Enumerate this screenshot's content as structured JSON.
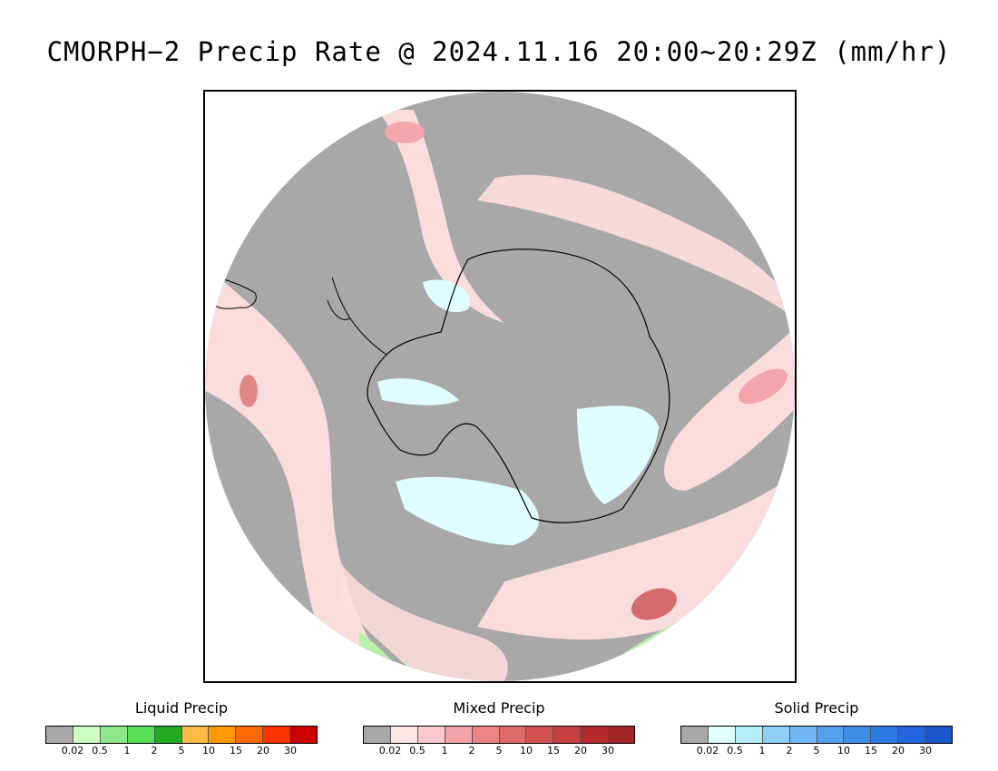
{
  "title": "CMORPH−2 Precip Rate @ 2024.11.16 20:00~20:29Z (mm/hr)",
  "map": {
    "projection": "south polar stereographic",
    "colors": {
      "no_precip": "#a8a8a8",
      "ocean_outside": "#ffffff",
      "coast": "#000000",
      "mixed_light": "#ffdede",
      "mixed_mid": "#f4a6ac",
      "mixed_heavy": "#d46a6a",
      "solid_light": "#e0feff",
      "liquid_light": "#b8f0a8",
      "liquid_mid": "#5ad86a"
    }
  },
  "legends": [
    {
      "title": "Liquid Precip",
      "colors": [
        "#a8a8a8",
        "#cfffc0",
        "#8ee88a",
        "#55dd55",
        "#22aa22",
        "#ffbb44",
        "#ff9900",
        "#ff6a00",
        "#ff3300",
        "#cc0000"
      ],
      "ticks": [
        "0.02",
        "0.5",
        "1",
        "2",
        "5",
        "10",
        "15",
        "20",
        "30"
      ]
    },
    {
      "title": "Mixed Precip",
      "colors": [
        "#a8a8a8",
        "#ffe6e6",
        "#ffc8cc",
        "#f4a4a8",
        "#ec8484",
        "#e06a6a",
        "#d45454",
        "#c84040",
        "#b42a2a",
        "#a02424"
      ],
      "ticks": [
        "0.02",
        "0.5",
        "1",
        "2",
        "5",
        "10",
        "15",
        "20",
        "30"
      ]
    },
    {
      "title": "Solid Precip",
      "colors": [
        "#a8a8a8",
        "#e0ffff",
        "#b4eef8",
        "#90cff8",
        "#72b6f4",
        "#54a0ee",
        "#3e8ee8",
        "#2e7ae4",
        "#2266dd",
        "#1a56cc"
      ],
      "ticks": [
        "0.02",
        "0.5",
        "1",
        "2",
        "5",
        "10",
        "15",
        "20",
        "30"
      ]
    }
  ]
}
